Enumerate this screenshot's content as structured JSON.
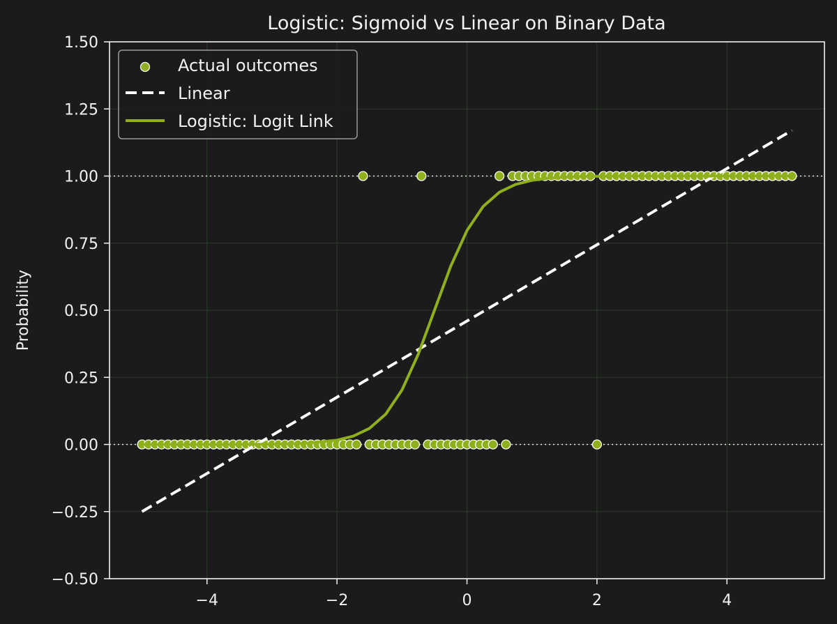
{
  "chart_data": {
    "type": "scatter",
    "title": "Logistic: Sigmoid vs Linear on Binary Data",
    "xlabel": "",
    "ylabel": "Probability",
    "xlim": [
      -5.5,
      5.5
    ],
    "ylim": [
      -0.5,
      1.5
    ],
    "x_ticks": [
      -4,
      -2,
      0,
      2,
      4
    ],
    "x_tick_labels": [
      "−4",
      "−2",
      "0",
      "2",
      "4"
    ],
    "y_ticks": [
      -0.5,
      -0.25,
      0,
      0.25,
      0.5,
      0.75,
      1,
      1.25,
      1.5
    ],
    "y_tick_labels": [
      "−0.50",
      "−0.25",
      "0.00",
      "0.25",
      "0.50",
      "0.75",
      "1.00",
      "1.25",
      "1.50"
    ],
    "grid": true,
    "legend_position": "top-left",
    "reference_lines_y": [
      0,
      1
    ],
    "colors": {
      "background": "#1b1b1b",
      "axes": "#f2f2f2",
      "grid": "#2b3d2b",
      "scatter": "#8faf1c",
      "logistic": "#8faf1c",
      "linear": "#ffffff"
    },
    "series": [
      {
        "name": "Actual outcomes",
        "kind": "scatter",
        "x": [
          -5.0,
          -4.9,
          -4.8,
          -4.7,
          -4.6,
          -4.5,
          -4.4,
          -4.3,
          -4.2,
          -4.1,
          -4.0,
          -3.9,
          -3.8,
          -3.7,
          -3.6,
          -3.5,
          -3.4,
          -3.3,
          -3.2,
          -3.1,
          -3.0,
          -2.9,
          -2.8,
          -2.7,
          -2.6,
          -2.5,
          -2.4,
          -2.3,
          -2.2,
          -2.1,
          -2.0,
          -1.9,
          -1.8,
          -1.7,
          -1.6,
          -1.5,
          -1.4,
          -1.3,
          -1.2,
          -1.1,
          -1.0,
          -0.9,
          -0.8,
          -0.7,
          -0.6,
          -0.5,
          -0.4,
          -0.3,
          -0.2,
          -0.1,
          0.0,
          0.1,
          0.2,
          0.3,
          0.4,
          0.5,
          0.6,
          0.7,
          0.8,
          0.9,
          1.0,
          1.1,
          1.2,
          1.3,
          1.4,
          1.5,
          1.6,
          1.7,
          1.8,
          1.9,
          2.0,
          2.1,
          2.2,
          2.3,
          2.4,
          2.5,
          2.6,
          2.7,
          2.8,
          2.9,
          3.0,
          3.1,
          3.2,
          3.3,
          3.4,
          3.5,
          3.6,
          3.7,
          3.8,
          3.9,
          4.0,
          4.1,
          4.2,
          4.3,
          4.4,
          4.5,
          4.6,
          4.7,
          4.8,
          4.9,
          5.0
        ],
        "y": [
          0,
          0,
          0,
          0,
          0,
          0,
          0,
          0,
          0,
          0,
          0,
          0,
          0,
          0,
          0,
          0,
          0,
          0,
          0,
          0,
          0,
          0,
          0,
          0,
          0,
          0,
          0,
          0,
          0,
          0,
          0,
          0,
          0,
          0,
          1,
          0,
          0,
          0,
          0,
          0,
          0,
          0,
          0,
          1,
          0,
          0,
          0,
          0,
          0,
          0,
          0,
          0,
          0,
          0,
          0,
          1,
          0,
          1,
          1,
          1,
          1,
          1,
          1,
          1,
          1,
          1,
          1,
          1,
          1,
          1,
          0,
          1,
          1,
          1,
          1,
          1,
          1,
          1,
          1,
          1,
          1,
          1,
          1,
          1,
          1,
          1,
          1,
          1,
          1,
          1,
          1,
          1,
          1,
          1,
          1,
          1,
          1,
          1,
          1,
          1,
          1
        ]
      },
      {
        "name": "Linear",
        "kind": "line",
        "style": "dashed",
        "x": [
          -5,
          5
        ],
        "y": [
          -0.25,
          1.17
        ]
      },
      {
        "name": "Logistic: Logit Link",
        "kind": "line",
        "style": "solid",
        "x": [
          -5.0,
          -4.5,
          -4.0,
          -3.5,
          -3.0,
          -2.5,
          -2.0,
          -1.75,
          -1.5,
          -1.25,
          -1.0,
          -0.75,
          -0.5,
          -0.25,
          0.0,
          0.25,
          0.5,
          0.75,
          1.0,
          1.25,
          1.5,
          1.75,
          2.0,
          2.5,
          3.0,
          3.5,
          4.0,
          4.5,
          5.0
        ],
        "y": [
          0.0,
          0.0,
          0.0,
          0.0,
          0.001,
          0.004,
          0.016,
          0.031,
          0.06,
          0.113,
          0.203,
          0.336,
          0.5,
          0.664,
          0.797,
          0.887,
          0.94,
          0.969,
          0.984,
          0.992,
          0.996,
          0.998,
          0.999,
          1.0,
          1.0,
          1.0,
          1.0,
          1.0,
          1.0
        ]
      }
    ]
  }
}
